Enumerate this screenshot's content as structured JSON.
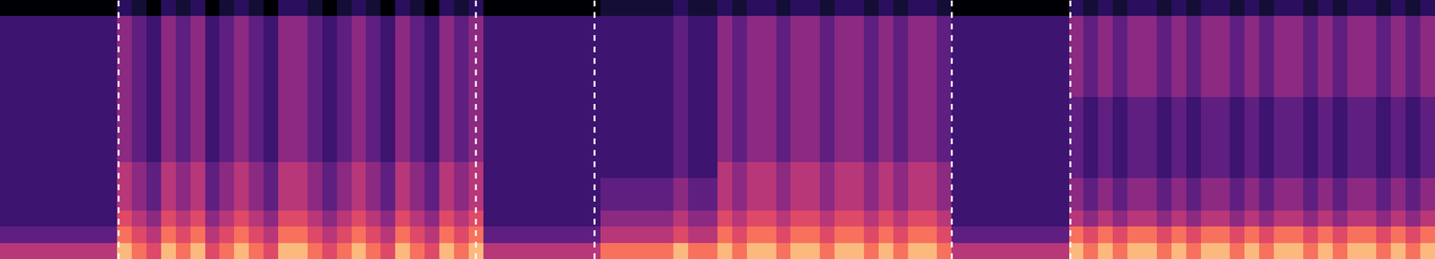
{
  "chart_data": {
    "type": "heatmap",
    "tick_labels": false,
    "xlim": [
      -0.5,
      97.5
    ],
    "ylim": [
      -0.5,
      15.5
    ],
    "zlim": [
      0,
      9
    ],
    "boundaries": [
      7.6,
      32,
      40.1,
      64.5,
      72.6
    ],
    "cells": [
      [
        6,
        6,
        6,
        6,
        6,
        6,
        6,
        6,
        9,
        8,
        7,
        9,
        8,
        9,
        7,
        8,
        9,
        8,
        7,
        9,
        9,
        8,
        7,
        8,
        9,
        8,
        7,
        9,
        8,
        7,
        9,
        8,
        9,
        6,
        6,
        6,
        6,
        6,
        6,
        6,
        6,
        8,
        8,
        8,
        8,
        8,
        9,
        8,
        8,
        9,
        8,
        9,
        9,
        8,
        9,
        9,
        8,
        9,
        9,
        8,
        9,
        8,
        9,
        9,
        8,
        6,
        6,
        6,
        6,
        6,
        6,
        6,
        6,
        9,
        8,
        9,
        8,
        9,
        9,
        8,
        9,
        8,
        9,
        9,
        8,
        9,
        8,
        9,
        9,
        8,
        9,
        8,
        9,
        9,
        8,
        9,
        8,
        9
      ],
      [
        4,
        4,
        4,
        4,
        4,
        4,
        4,
        4,
        8,
        7,
        6,
        8,
        7,
        8,
        6,
        7,
        8,
        7,
        6,
        8,
        8,
        7,
        6,
        7,
        8,
        7,
        6,
        8,
        7,
        6,
        8,
        7,
        8,
        4,
        4,
        4,
        4,
        4,
        4,
        4,
        4,
        6,
        6,
        6,
        6,
        6,
        7,
        6,
        6,
        8,
        7,
        8,
        8,
        7,
        8,
        8,
        7,
        8,
        8,
        7,
        8,
        7,
        8,
        8,
        7,
        4,
        4,
        4,
        4,
        4,
        4,
        4,
        4,
        8,
        7,
        8,
        7,
        8,
        8,
        7,
        8,
        7,
        8,
        8,
        7,
        8,
        7,
        8,
        8,
        7,
        8,
        7,
        8,
        8,
        7,
        8,
        7,
        8
      ],
      [
        3,
        3,
        3,
        3,
        3,
        3,
        3,
        3,
        7,
        6,
        5,
        7,
        6,
        7,
        5,
        6,
        7,
        6,
        5,
        7,
        7,
        6,
        5,
        6,
        7,
        6,
        5,
        7,
        6,
        5,
        7,
        6,
        7,
        3,
        3,
        3,
        3,
        3,
        3,
        3,
        3,
        5,
        5,
        5,
        5,
        5,
        6,
        5,
        5,
        7,
        6,
        7,
        7,
        6,
        7,
        7,
        6,
        7,
        7,
        6,
        7,
        6,
        7,
        7,
        6,
        3,
        3,
        3,
        3,
        3,
        3,
        3,
        3,
        6,
        5,
        6,
        5,
        6,
        6,
        5,
        6,
        5,
        6,
        6,
        5,
        6,
        5,
        6,
        6,
        5,
        6,
        5,
        6,
        6,
        5,
        6,
        5,
        6
      ],
      [
        3,
        3,
        3,
        3,
        3,
        3,
        3,
        3,
        6,
        5,
        4,
        6,
        5,
        6,
        4,
        5,
        6,
        5,
        4,
        6,
        6,
        5,
        4,
        5,
        6,
        5,
        4,
        6,
        5,
        4,
        6,
        5,
        6,
        3,
        3,
        3,
        3,
        3,
        3,
        3,
        3,
        4,
        4,
        4,
        4,
        4,
        5,
        4,
        4,
        6,
        5,
        6,
        6,
        5,
        6,
        6,
        5,
        6,
        6,
        5,
        6,
        5,
        6,
        6,
        5,
        3,
        3,
        3,
        3,
        3,
        3,
        3,
        3,
        5,
        4,
        5,
        4,
        5,
        5,
        4,
        5,
        4,
        5,
        5,
        4,
        5,
        4,
        5,
        5,
        4,
        5,
        4,
        5,
        5,
        4,
        5,
        4,
        5
      ],
      [
        3,
        3,
        3,
        3,
        3,
        3,
        3,
        3,
        6,
        5,
        4,
        6,
        5,
        6,
        4,
        5,
        6,
        5,
        4,
        6,
        6,
        5,
        4,
        5,
        6,
        5,
        4,
        6,
        5,
        4,
        6,
        5,
        6,
        3,
        3,
        3,
        3,
        3,
        3,
        3,
        3,
        4,
        4,
        4,
        4,
        4,
        5,
        4,
        4,
        6,
        5,
        6,
        6,
        5,
        6,
        6,
        5,
        6,
        6,
        5,
        6,
        5,
        6,
        6,
        5,
        3,
        3,
        3,
        3,
        3,
        3,
        3,
        3,
        5,
        4,
        5,
        4,
        5,
        5,
        4,
        5,
        4,
        5,
        5,
        4,
        5,
        4,
        5,
        5,
        4,
        5,
        4,
        5,
        5,
        4,
        5,
        4,
        5
      ],
      [
        3,
        3,
        3,
        3,
        3,
        3,
        3,
        3,
        6,
        5,
        4,
        6,
        5,
        6,
        4,
        5,
        6,
        5,
        4,
        6,
        6,
        5,
        4,
        5,
        6,
        5,
        4,
        6,
        5,
        4,
        6,
        5,
        6,
        3,
        3,
        3,
        3,
        3,
        3,
        3,
        3,
        3,
        3,
        3,
        3,
        3,
        4,
        3,
        3,
        6,
        5,
        6,
        6,
        5,
        6,
        6,
        5,
        6,
        6,
        5,
        6,
        5,
        6,
        6,
        5,
        3,
        3,
        3,
        3,
        3,
        3,
        3,
        3,
        4,
        3,
        4,
        3,
        4,
        4,
        3,
        4,
        3,
        4,
        4,
        3,
        4,
        3,
        4,
        4,
        3,
        4,
        3,
        4,
        4,
        3,
        4,
        3,
        4
      ],
      [
        3,
        3,
        3,
        3,
        3,
        3,
        3,
        3,
        5,
        4,
        3,
        5,
        4,
        5,
        3,
        4,
        5,
        4,
        3,
        5,
        5,
        4,
        3,
        4,
        5,
        4,
        3,
        5,
        4,
        3,
        5,
        4,
        5,
        3,
        3,
        3,
        3,
        3,
        3,
        3,
        3,
        3,
        3,
        3,
        3,
        3,
        4,
        3,
        3,
        5,
        4,
        5,
        5,
        4,
        5,
        5,
        4,
        5,
        5,
        4,
        5,
        4,
        5,
        5,
        4,
        3,
        3,
        3,
        3,
        3,
        3,
        3,
        3,
        4,
        3,
        4,
        3,
        4,
        4,
        3,
        4,
        3,
        4,
        4,
        3,
        4,
        3,
        4,
        4,
        3,
        4,
        3,
        4,
        4,
        3,
        4,
        3,
        4
      ],
      [
        3,
        3,
        3,
        3,
        3,
        3,
        3,
        3,
        5,
        4,
        3,
        5,
        4,
        5,
        3,
        4,
        5,
        4,
        3,
        5,
        5,
        4,
        3,
        4,
        5,
        4,
        3,
        5,
        4,
        3,
        5,
        4,
        5,
        3,
        3,
        3,
        3,
        3,
        3,
        3,
        3,
        3,
        3,
        3,
        3,
        3,
        4,
        3,
        3,
        5,
        4,
        5,
        5,
        4,
        5,
        5,
        4,
        5,
        5,
        4,
        5,
        4,
        5,
        5,
        4,
        3,
        3,
        3,
        3,
        3,
        3,
        3,
        3,
        4,
        3,
        4,
        3,
        4,
        4,
        3,
        4,
        3,
        4,
        4,
        3,
        4,
        3,
        4,
        4,
        3,
        4,
        3,
        4,
        4,
        3,
        4,
        3,
        4
      ],
      [
        3,
        3,
        3,
        3,
        3,
        3,
        3,
        3,
        5,
        4,
        3,
        5,
        4,
        5,
        3,
        4,
        5,
        4,
        3,
        5,
        5,
        4,
        3,
        4,
        5,
        4,
        3,
        5,
        4,
        3,
        5,
        4,
        5,
        3,
        3,
        3,
        3,
        3,
        3,
        3,
        3,
        3,
        3,
        3,
        3,
        3,
        4,
        3,
        3,
        5,
        4,
        5,
        5,
        4,
        5,
        5,
        4,
        5,
        5,
        4,
        5,
        4,
        5,
        5,
        4,
        3,
        3,
        3,
        3,
        3,
        3,
        3,
        3,
        4,
        3,
        4,
        3,
        4,
        4,
        3,
        4,
        3,
        4,
        4,
        3,
        4,
        3,
        4,
        4,
        3,
        4,
        3,
        4,
        4,
        3,
        4,
        3,
        4
      ],
      [
        3,
        3,
        3,
        3,
        3,
        3,
        3,
        3,
        5,
        4,
        3,
        5,
        4,
        5,
        3,
        4,
        5,
        4,
        3,
        5,
        5,
        4,
        3,
        4,
        5,
        4,
        3,
        5,
        4,
        3,
        5,
        4,
        5,
        3,
        3,
        3,
        3,
        3,
        3,
        3,
        3,
        3,
        3,
        3,
        3,
        3,
        4,
        3,
        3,
        5,
        4,
        5,
        5,
        4,
        5,
        5,
        4,
        5,
        5,
        4,
        5,
        4,
        5,
        5,
        4,
        3,
        3,
        3,
        3,
        3,
        3,
        3,
        3,
        4,
        3,
        4,
        3,
        4,
        4,
        3,
        4,
        3,
        4,
        4,
        3,
        4,
        3,
        4,
        4,
        3,
        4,
        3,
        4,
        4,
        3,
        4,
        3,
        4
      ],
      [
        3,
        3,
        3,
        3,
        3,
        3,
        3,
        3,
        5,
        4,
        3,
        5,
        4,
        5,
        3,
        4,
        5,
        4,
        3,
        5,
        5,
        4,
        3,
        4,
        5,
        4,
        3,
        5,
        4,
        3,
        5,
        4,
        5,
        3,
        3,
        3,
        3,
        3,
        3,
        3,
        3,
        3,
        3,
        3,
        3,
        3,
        4,
        3,
        3,
        5,
        4,
        5,
        5,
        4,
        5,
        5,
        4,
        5,
        5,
        4,
        5,
        4,
        5,
        5,
        4,
        3,
        3,
        3,
        3,
        3,
        3,
        3,
        3,
        5,
        4,
        5,
        4,
        5,
        5,
        4,
        5,
        4,
        5,
        5,
        4,
        5,
        4,
        5,
        5,
        4,
        5,
        4,
        5,
        5,
        4,
        5,
        4,
        5
      ],
      [
        3,
        3,
        3,
        3,
        3,
        3,
        3,
        3,
        5,
        4,
        3,
        5,
        4,
        5,
        3,
        4,
        5,
        4,
        3,
        5,
        5,
        4,
        3,
        4,
        5,
        4,
        3,
        5,
        4,
        3,
        5,
        4,
        5,
        3,
        3,
        3,
        3,
        3,
        3,
        3,
        3,
        3,
        3,
        3,
        3,
        3,
        4,
        3,
        3,
        5,
        4,
        5,
        5,
        4,
        5,
        5,
        4,
        5,
        5,
        4,
        5,
        4,
        5,
        5,
        4,
        3,
        3,
        3,
        3,
        3,
        3,
        3,
        3,
        5,
        4,
        5,
        4,
        5,
        5,
        4,
        5,
        4,
        5,
        5,
        4,
        5,
        4,
        5,
        5,
        4,
        5,
        4,
        5,
        5,
        4,
        5,
        4,
        5
      ],
      [
        3,
        3,
        3,
        3,
        3,
        3,
        3,
        3,
        5,
        4,
        3,
        5,
        4,
        5,
        3,
        4,
        5,
        4,
        3,
        5,
        5,
        4,
        3,
        4,
        5,
        4,
        3,
        5,
        4,
        3,
        5,
        4,
        5,
        3,
        3,
        3,
        3,
        3,
        3,
        3,
        3,
        3,
        3,
        3,
        3,
        3,
        4,
        3,
        3,
        5,
        4,
        5,
        5,
        4,
        5,
        5,
        4,
        5,
        5,
        4,
        5,
        4,
        5,
        5,
        4,
        3,
        3,
        3,
        3,
        3,
        3,
        3,
        3,
        5,
        4,
        5,
        4,
        5,
        5,
        4,
        5,
        4,
        5,
        5,
        4,
        5,
        4,
        5,
        5,
        4,
        5,
        4,
        5,
        5,
        4,
        5,
        4,
        5
      ],
      [
        3,
        3,
        3,
        3,
        3,
        3,
        3,
        3,
        5,
        4,
        3,
        5,
        4,
        5,
        3,
        4,
        5,
        4,
        3,
        5,
        5,
        4,
        3,
        4,
        5,
        4,
        3,
        5,
        4,
        3,
        5,
        4,
        5,
        3,
        3,
        3,
        3,
        3,
        3,
        3,
        3,
        3,
        3,
        3,
        3,
        3,
        4,
        3,
        3,
        5,
        4,
        5,
        5,
        4,
        5,
        5,
        4,
        5,
        5,
        4,
        5,
        4,
        5,
        5,
        4,
        3,
        3,
        3,
        3,
        3,
        3,
        3,
        3,
        5,
        4,
        5,
        4,
        5,
        5,
        4,
        5,
        4,
        5,
        5,
        4,
        5,
        4,
        5,
        5,
        4,
        5,
        4,
        5,
        5,
        4,
        5,
        4,
        5
      ],
      [
        3,
        3,
        3,
        3,
        3,
        3,
        3,
        3,
        5,
        4,
        3,
        5,
        4,
        5,
        3,
        4,
        5,
        4,
        3,
        5,
        5,
        4,
        3,
        4,
        5,
        4,
        3,
        5,
        4,
        3,
        5,
        4,
        5,
        3,
        3,
        3,
        3,
        3,
        3,
        3,
        3,
        3,
        3,
        3,
        3,
        3,
        4,
        3,
        3,
        5,
        4,
        5,
        5,
        4,
        5,
        5,
        4,
        5,
        5,
        4,
        5,
        4,
        5,
        5,
        4,
        3,
        3,
        3,
        3,
        3,
        3,
        3,
        3,
        5,
        4,
        5,
        4,
        5,
        5,
        4,
        5,
        4,
        5,
        5,
        4,
        5,
        4,
        5,
        5,
        4,
        5,
        4,
        5,
        5,
        4,
        5,
        4,
        5
      ],
      [
        0,
        0,
        0,
        0,
        0,
        0,
        0,
        0,
        2,
        1,
        0,
        2,
        1,
        2,
        0,
        1,
        2,
        1,
        0,
        2,
        2,
        1,
        0,
        1,
        2,
        1,
        0,
        2,
        1,
        0,
        2,
        1,
        2,
        0,
        0,
        0,
        0,
        0,
        0,
        0,
        0,
        1,
        1,
        1,
        1,
        1,
        2,
        1,
        1,
        2,
        1,
        2,
        2,
        1,
        2,
        2,
        1,
        2,
        2,
        1,
        2,
        1,
        2,
        2,
        1,
        0,
        0,
        0,
        0,
        0,
        0,
        0,
        0,
        2,
        1,
        2,
        1,
        2,
        2,
        1,
        2,
        1,
        2,
        2,
        1,
        2,
        1,
        2,
        2,
        1,
        2,
        1,
        2,
        2,
        1,
        2,
        1,
        2
      ]
    ]
  }
}
